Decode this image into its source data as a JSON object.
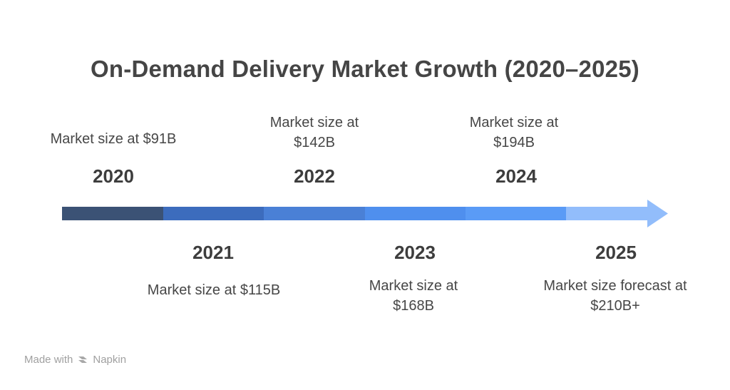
{
  "title": "On-Demand Delivery Market Growth (2020–2025)",
  "milestones": [
    {
      "year": "2020",
      "text": "Market size at $91B",
      "color": "#3b5275"
    },
    {
      "year": "2021",
      "text": "Market size at $115B",
      "color": "#3c6cbd"
    },
    {
      "year": "2022",
      "text": "Market size at $142B",
      "color": "#4a80d6"
    },
    {
      "year": "2023",
      "text": "Market size at $168B",
      "color": "#4f8fee"
    },
    {
      "year": "2024",
      "text": "Market size at $194B",
      "color": "#5a9bf6"
    },
    {
      "year": "2025",
      "text": "Market size forecast at $210B+",
      "color": "#92bdfb"
    }
  ],
  "footer": {
    "made_with": "Made with",
    "brand": "Napkin"
  }
}
